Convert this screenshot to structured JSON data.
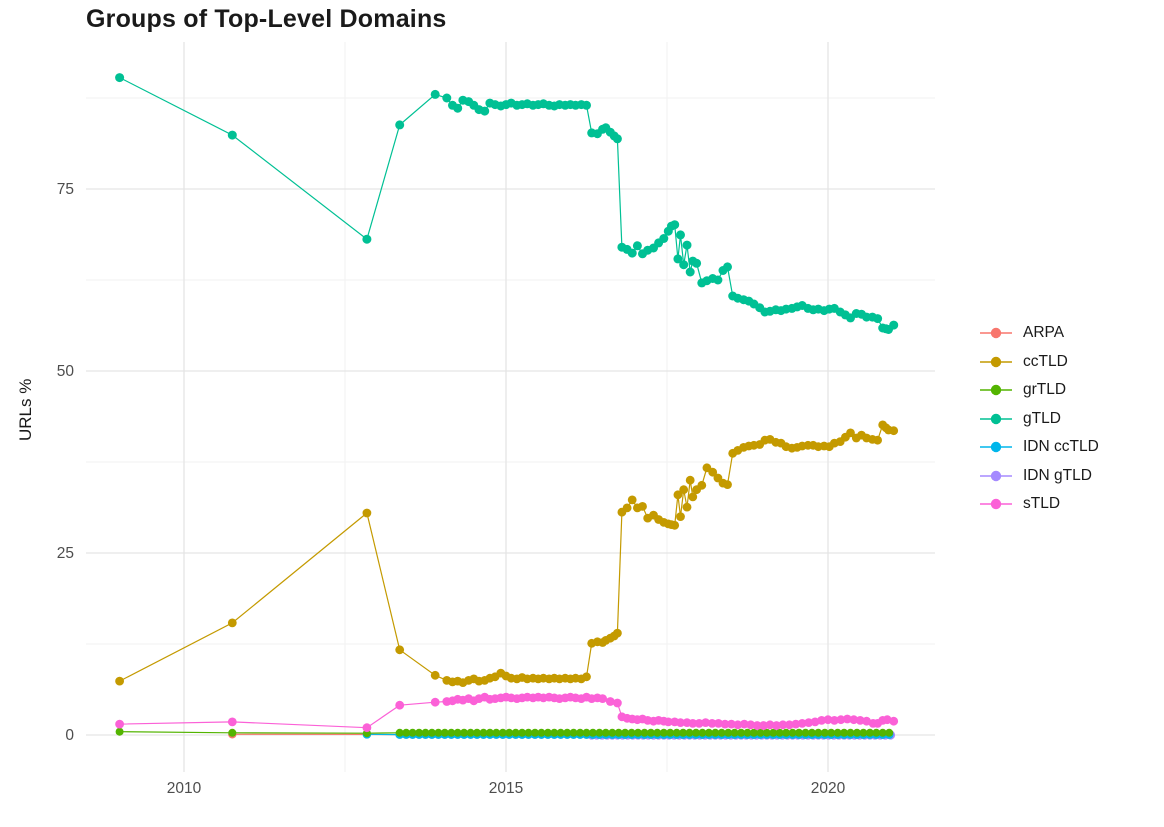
{
  "chart_data": {
    "type": "line",
    "title": "Groups of Top-Level Domains",
    "ylabel": "URLs %",
    "xlabel": "",
    "x_ticks": [
      2010,
      2015,
      2020
    ],
    "y_ticks": [
      0,
      25,
      50,
      75
    ],
    "x_minor_gridlines": [
      2012.5,
      2017.5
    ],
    "y_minor_gridlines": [
      12.5,
      37.5,
      62.5,
      87.5
    ],
    "xlim": [
      2008.5,
      2021.7
    ],
    "ylim": [
      -5,
      95
    ],
    "grid": true,
    "legend_position": "right",
    "legend_items": [
      "ARPA",
      "ccTLD",
      "grTLD",
      "gTLD",
      "IDN ccTLD",
      "IDN gTLD",
      "sTLD"
    ],
    "series": [
      {
        "name": "ARPA",
        "color": "#F8766D",
        "z": 1,
        "r": 4.2,
        "points": [
          [
            2010.75,
            0.1
          ],
          [
            2012.84,
            0.08
          ]
        ],
        "flat": {
          "from": 2013.35,
          "to": 2021.02,
          "step": 0.1,
          "value": 0.05
        }
      },
      {
        "name": "ccTLD",
        "color": "#C49A00",
        "z": 5,
        "r": 4.4,
        "points": [
          [
            2009,
            7.4
          ],
          [
            2010.75,
            15.4
          ],
          [
            2012.84,
            30.5
          ],
          [
            2013.35,
            11.7
          ],
          [
            2013.9,
            8.2
          ],
          [
            2014.08,
            7.5
          ],
          [
            2014.17,
            7.3
          ],
          [
            2014.25,
            7.4
          ],
          [
            2014.33,
            7.2
          ],
          [
            2014.42,
            7.5
          ],
          [
            2014.5,
            7.7
          ],
          [
            2014.58,
            7.4
          ],
          [
            2014.67,
            7.5
          ],
          [
            2014.75,
            7.8
          ],
          [
            2014.83,
            8.0
          ],
          [
            2014.92,
            8.5
          ],
          [
            2015.0,
            8.1
          ],
          [
            2015.08,
            7.8
          ],
          [
            2015.17,
            7.7
          ],
          [
            2015.25,
            7.9
          ],
          [
            2015.33,
            7.7
          ],
          [
            2015.42,
            7.8
          ],
          [
            2015.5,
            7.7
          ],
          [
            2015.58,
            7.8
          ],
          [
            2015.67,
            7.7
          ],
          [
            2015.75,
            7.8
          ],
          [
            2015.83,
            7.7
          ],
          [
            2015.92,
            7.8
          ],
          [
            2016.0,
            7.7
          ],
          [
            2016.08,
            7.8
          ],
          [
            2016.17,
            7.7
          ],
          [
            2016.25,
            8.0
          ],
          [
            2016.33,
            12.6
          ],
          [
            2016.42,
            12.8
          ],
          [
            2016.5,
            12.7
          ],
          [
            2016.55,
            13.0
          ],
          [
            2016.62,
            13.3
          ],
          [
            2016.68,
            13.6
          ],
          [
            2016.73,
            14.0
          ],
          [
            2016.8,
            30.6
          ],
          [
            2016.88,
            31.2
          ],
          [
            2016.96,
            32.3
          ],
          [
            2017.04,
            31.2
          ],
          [
            2017.12,
            31.4
          ],
          [
            2017.2,
            29.8
          ],
          [
            2017.29,
            30.2
          ],
          [
            2017.37,
            29.6
          ],
          [
            2017.45,
            29.2
          ],
          [
            2017.52,
            29.0
          ],
          [
            2017.57,
            28.9
          ],
          [
            2017.62,
            28.8
          ],
          [
            2017.67,
            33.0
          ],
          [
            2017.71,
            30.0
          ],
          [
            2017.76,
            33.7
          ],
          [
            2017.81,
            31.3
          ],
          [
            2017.86,
            35.0
          ],
          [
            2017.9,
            32.7
          ],
          [
            2017.96,
            33.7
          ],
          [
            2018.04,
            34.3
          ],
          [
            2018.12,
            36.7
          ],
          [
            2018.21,
            36.1
          ],
          [
            2018.29,
            35.3
          ],
          [
            2018.37,
            34.6
          ],
          [
            2018.44,
            34.4
          ],
          [
            2018.52,
            38.7
          ],
          [
            2018.6,
            39.1
          ],
          [
            2018.69,
            39.5
          ],
          [
            2018.77,
            39.7
          ],
          [
            2018.85,
            39.8
          ],
          [
            2018.94,
            39.9
          ],
          [
            2019.02,
            40.5
          ],
          [
            2019.1,
            40.6
          ],
          [
            2019.19,
            40.2
          ],
          [
            2019.27,
            40.1
          ],
          [
            2019.35,
            39.6
          ],
          [
            2019.44,
            39.4
          ],
          [
            2019.52,
            39.5
          ],
          [
            2019.6,
            39.7
          ],
          [
            2019.69,
            39.8
          ],
          [
            2019.77,
            39.8
          ],
          [
            2019.85,
            39.6
          ],
          [
            2019.94,
            39.7
          ],
          [
            2020.02,
            39.6
          ],
          [
            2020.1,
            40.1
          ],
          [
            2020.19,
            40.3
          ],
          [
            2020.27,
            40.9
          ],
          [
            2020.35,
            41.5
          ],
          [
            2020.44,
            40.8
          ],
          [
            2020.52,
            41.2
          ],
          [
            2020.6,
            40.8
          ],
          [
            2020.69,
            40.6
          ],
          [
            2020.77,
            40.5
          ],
          [
            2020.85,
            42.6
          ],
          [
            2020.9,
            42.2
          ],
          [
            2020.94,
            41.9
          ],
          [
            2021.02,
            41.8
          ]
        ]
      },
      {
        "name": "grTLD",
        "color": "#53B400",
        "z": 3,
        "r": 4.0,
        "points": [
          [
            2009,
            0.45
          ],
          [
            2010.75,
            0.3
          ],
          [
            2012.84,
            0.25
          ]
        ],
        "flat": {
          "from": 2013.35,
          "to": 2021.02,
          "step": 0.1,
          "value": 0.3
        }
      },
      {
        "name": "gTLD",
        "color": "#00C094",
        "z": 6,
        "r": 4.5,
        "points": [
          [
            2009,
            90.3
          ],
          [
            2010.75,
            82.4
          ],
          [
            2012.84,
            68.1
          ],
          [
            2013.35,
            83.8
          ],
          [
            2013.9,
            88.0
          ],
          [
            2014.08,
            87.5
          ],
          [
            2014.17,
            86.5
          ],
          [
            2014.25,
            86.1
          ],
          [
            2014.33,
            87.2
          ],
          [
            2014.42,
            87.0
          ],
          [
            2014.5,
            86.5
          ],
          [
            2014.58,
            85.9
          ],
          [
            2014.67,
            85.7
          ],
          [
            2014.75,
            86.8
          ],
          [
            2014.83,
            86.6
          ],
          [
            2014.92,
            86.4
          ],
          [
            2015.0,
            86.6
          ],
          [
            2015.08,
            86.8
          ],
          [
            2015.17,
            86.5
          ],
          [
            2015.25,
            86.6
          ],
          [
            2015.33,
            86.7
          ],
          [
            2015.42,
            86.5
          ],
          [
            2015.5,
            86.6
          ],
          [
            2015.58,
            86.7
          ],
          [
            2015.67,
            86.5
          ],
          [
            2015.75,
            86.4
          ],
          [
            2015.83,
            86.6
          ],
          [
            2015.92,
            86.5
          ],
          [
            2016.0,
            86.6
          ],
          [
            2016.08,
            86.5
          ],
          [
            2016.17,
            86.6
          ],
          [
            2016.25,
            86.5
          ],
          [
            2016.33,
            82.7
          ],
          [
            2016.42,
            82.6
          ],
          [
            2016.5,
            83.2
          ],
          [
            2016.55,
            83.4
          ],
          [
            2016.62,
            82.8
          ],
          [
            2016.68,
            82.3
          ],
          [
            2016.73,
            81.9
          ],
          [
            2016.8,
            67.0
          ],
          [
            2016.88,
            66.7
          ],
          [
            2016.96,
            66.2
          ],
          [
            2017.04,
            67.2
          ],
          [
            2017.12,
            66.1
          ],
          [
            2017.2,
            66.6
          ],
          [
            2017.29,
            66.9
          ],
          [
            2017.37,
            67.6
          ],
          [
            2017.45,
            68.2
          ],
          [
            2017.52,
            69.2
          ],
          [
            2017.57,
            69.9
          ],
          [
            2017.62,
            70.1
          ],
          [
            2017.67,
            65.4
          ],
          [
            2017.71,
            68.7
          ],
          [
            2017.76,
            64.6
          ],
          [
            2017.81,
            67.3
          ],
          [
            2017.86,
            63.6
          ],
          [
            2017.9,
            65.1
          ],
          [
            2017.96,
            64.8
          ],
          [
            2018.04,
            62.1
          ],
          [
            2018.12,
            62.4
          ],
          [
            2018.21,
            62.7
          ],
          [
            2018.29,
            62.5
          ],
          [
            2018.37,
            63.8
          ],
          [
            2018.44,
            64.3
          ],
          [
            2018.52,
            60.3
          ],
          [
            2018.6,
            60.0
          ],
          [
            2018.69,
            59.8
          ],
          [
            2018.77,
            59.6
          ],
          [
            2018.85,
            59.2
          ],
          [
            2018.94,
            58.7
          ],
          [
            2019.02,
            58.1
          ],
          [
            2019.1,
            58.2
          ],
          [
            2019.19,
            58.4
          ],
          [
            2019.27,
            58.3
          ],
          [
            2019.35,
            58.5
          ],
          [
            2019.44,
            58.6
          ],
          [
            2019.52,
            58.8
          ],
          [
            2019.6,
            59.0
          ],
          [
            2019.69,
            58.6
          ],
          [
            2019.77,
            58.4
          ],
          [
            2019.85,
            58.5
          ],
          [
            2019.94,
            58.3
          ],
          [
            2020.02,
            58.5
          ],
          [
            2020.1,
            58.6
          ],
          [
            2020.19,
            58.1
          ],
          [
            2020.27,
            57.7
          ],
          [
            2020.35,
            57.3
          ],
          [
            2020.44,
            57.9
          ],
          [
            2020.52,
            57.8
          ],
          [
            2020.6,
            57.4
          ],
          [
            2020.69,
            57.4
          ],
          [
            2020.77,
            57.2
          ],
          [
            2020.85,
            55.9
          ],
          [
            2020.9,
            55.8
          ],
          [
            2020.94,
            55.7
          ],
          [
            2021.02,
            56.3
          ]
        ]
      },
      {
        "name": "IDN ccTLD",
        "color": "#00B6EB",
        "z": 2,
        "r": 4.3,
        "points": [
          [
            2012.84,
            0.1
          ]
        ],
        "flat": {
          "from": 2013.35,
          "to": 2021.02,
          "step": 0.1,
          "value": 0.05
        }
      },
      {
        "name": "IDN gTLD",
        "color": "#A58AFF",
        "z": 0,
        "r": 4.6,
        "points": [],
        "flat": {
          "from": 2016.33,
          "to": 2021.02,
          "step": 0.08,
          "value": 0.0
        }
      },
      {
        "name": "sTLD",
        "color": "#FB61D7",
        "z": 4,
        "r": 4.4,
        "points": [
          [
            2009,
            1.5
          ],
          [
            2010.75,
            1.8
          ],
          [
            2012.84,
            1.0
          ],
          [
            2013.35,
            4.1
          ],
          [
            2013.9,
            4.5
          ],
          [
            2014.08,
            4.6
          ],
          [
            2014.17,
            4.7
          ],
          [
            2014.25,
            4.9
          ],
          [
            2014.33,
            4.8
          ],
          [
            2014.42,
            5.0
          ],
          [
            2014.5,
            4.7
          ],
          [
            2014.58,
            5.0
          ],
          [
            2014.67,
            5.2
          ],
          [
            2014.75,
            4.9
          ],
          [
            2014.83,
            5.0
          ],
          [
            2014.92,
            5.1
          ],
          [
            2015.0,
            5.2
          ],
          [
            2015.08,
            5.1
          ],
          [
            2015.17,
            5.0
          ],
          [
            2015.25,
            5.1
          ],
          [
            2015.33,
            5.2
          ],
          [
            2015.42,
            5.1
          ],
          [
            2015.5,
            5.2
          ],
          [
            2015.58,
            5.1
          ],
          [
            2015.67,
            5.2
          ],
          [
            2015.75,
            5.1
          ],
          [
            2015.83,
            5.0
          ],
          [
            2015.92,
            5.1
          ],
          [
            2016.0,
            5.2
          ],
          [
            2016.08,
            5.1
          ],
          [
            2016.17,
            5.0
          ],
          [
            2016.25,
            5.2
          ],
          [
            2016.33,
            5.0
          ],
          [
            2016.42,
            5.1
          ],
          [
            2016.5,
            5.0
          ],
          [
            2016.62,
            4.6
          ],
          [
            2016.73,
            4.4
          ],
          [
            2016.8,
            2.5
          ],
          [
            2016.88,
            2.3
          ],
          [
            2016.96,
            2.2
          ],
          [
            2017.04,
            2.1
          ],
          [
            2017.12,
            2.2
          ],
          [
            2017.2,
            2.0
          ],
          [
            2017.29,
            1.9
          ],
          [
            2017.37,
            2.0
          ],
          [
            2017.45,
            1.9
          ],
          [
            2017.52,
            1.8
          ],
          [
            2017.62,
            1.8
          ],
          [
            2017.71,
            1.7
          ],
          [
            2017.81,
            1.7
          ],
          [
            2017.9,
            1.6
          ],
          [
            2018.0,
            1.6
          ],
          [
            2018.1,
            1.7
          ],
          [
            2018.2,
            1.6
          ],
          [
            2018.3,
            1.6
          ],
          [
            2018.4,
            1.5
          ],
          [
            2018.5,
            1.5
          ],
          [
            2018.6,
            1.4
          ],
          [
            2018.7,
            1.5
          ],
          [
            2018.8,
            1.4
          ],
          [
            2018.9,
            1.3
          ],
          [
            2019.0,
            1.3
          ],
          [
            2019.1,
            1.4
          ],
          [
            2019.2,
            1.3
          ],
          [
            2019.3,
            1.4
          ],
          [
            2019.4,
            1.4
          ],
          [
            2019.5,
            1.5
          ],
          [
            2019.6,
            1.6
          ],
          [
            2019.7,
            1.7
          ],
          [
            2019.8,
            1.8
          ],
          [
            2019.9,
            2.0
          ],
          [
            2020.0,
            2.1
          ],
          [
            2020.1,
            2.0
          ],
          [
            2020.2,
            2.1
          ],
          [
            2020.3,
            2.2
          ],
          [
            2020.4,
            2.1
          ],
          [
            2020.5,
            2.0
          ],
          [
            2020.6,
            1.9
          ],
          [
            2020.7,
            1.6
          ],
          [
            2020.77,
            1.6
          ],
          [
            2020.85,
            2.0
          ],
          [
            2020.92,
            2.1
          ],
          [
            2021.02,
            1.9
          ]
        ]
      }
    ]
  },
  "colors": {
    "background": "#FFFFFF",
    "grid_major": "#E5E5E5",
    "grid_minor": "#F2F2F2",
    "tick_label": "#4D4D4D",
    "title_text": "#1A1A1A"
  }
}
